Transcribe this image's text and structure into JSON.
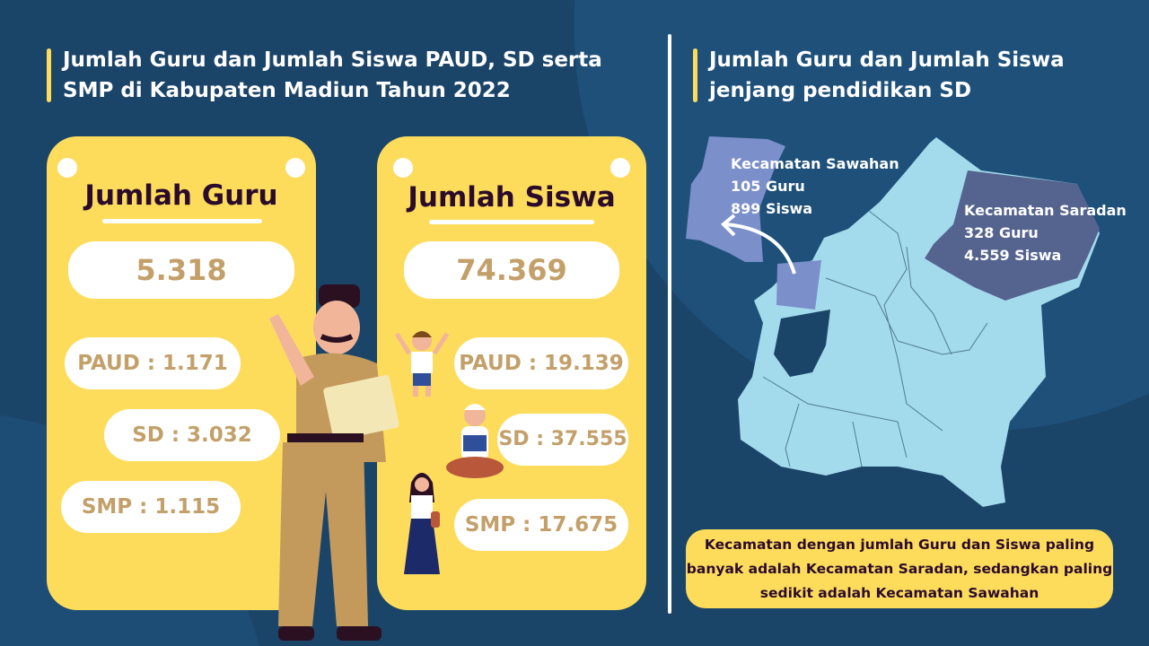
{
  "left": {
    "title": "Jumlah Guru dan Jumlah Siswa PAUD, SD serta SMP di Kabupaten Madiun Tahun 2022",
    "guru": {
      "heading": "Jumlah Guru",
      "total": "5.318",
      "paud": "PAUD : 1.171",
      "sd": "SD : 3.032",
      "smp": "SMP : 1.115"
    },
    "siswa": {
      "heading": "Jumlah Siswa",
      "total": "74.369",
      "paud": "PAUD : 19.139",
      "sd": "SD : 37.555",
      "smp": "SMP : 17.675"
    }
  },
  "right": {
    "title": "Jumlah Guru dan Jumlah Siswa jenjang pendidikan SD",
    "sawahan": {
      "name": "Kecamatan Sawahan",
      "guru": "105 Guru",
      "siswa": "899 Siswa"
    },
    "saradan": {
      "name": "Kecamatan Saradan",
      "guru": "328 Guru",
      "siswa": "4.559 Siswa"
    },
    "note": "Kecamatan dengan jumlah Guru dan Siswa paling banyak adalah Kecamatan Saradan, sedangkan paling sedikit adalah Kecamatan Sawahan"
  },
  "colors": {
    "background": "#1b4469",
    "card": "#fddc5c",
    "value_text": "#c3a06a",
    "map": "#a4dbec",
    "sawahan": "#7b8fcb",
    "saradan": "#55648f"
  }
}
